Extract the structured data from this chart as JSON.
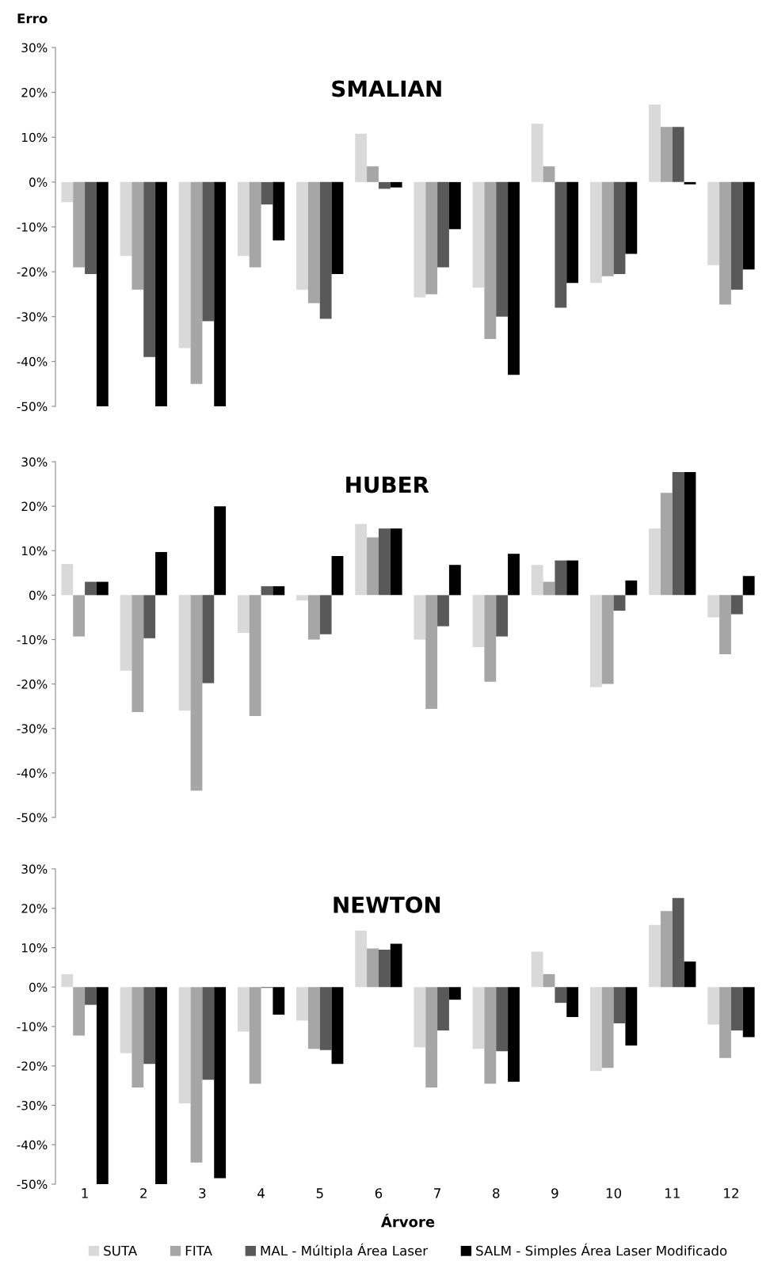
{
  "chart_data": [
    {
      "type": "bar",
      "title": "SMALIAN",
      "ylabel": "Erro",
      "categories": [
        "1",
        "2",
        "3",
        "4",
        "5",
        "6",
        "7",
        "8",
        "9",
        "10",
        "11",
        "12"
      ],
      "tick_labels": "y",
      "grid": false,
      "legend": false,
      "ylim": [
        -50,
        30
      ],
      "yticks": [
        {
          "value": 30,
          "label": "30%"
        },
        {
          "value": 20,
          "label": "20%"
        },
        {
          "value": 10,
          "label": "10%"
        },
        {
          "value": 0,
          "label": "0%"
        },
        {
          "value": -10,
          "label": "-10%"
        },
        {
          "value": -20,
          "label": "-20%"
        },
        {
          "value": -30,
          "label": "-30%"
        },
        {
          "value": -40,
          "label": "-40%"
        },
        {
          "value": -50,
          "label": "-50%"
        }
      ],
      "series": [
        {
          "color": "#d9d9d9",
          "values": [
            -4.5,
            -16.5,
            -37,
            -16.5,
            -24,
            10.8,
            -25.7,
            -23.5,
            13,
            -22.5,
            17.3,
            -18.5
          ]
        },
        {
          "color": "#a6a6a6",
          "values": [
            -19,
            -24,
            -45,
            -19,
            -27,
            3.5,
            -25,
            -35,
            3.5,
            -21,
            12.3,
            -27.3
          ]
        },
        {
          "color": "#595959",
          "values": [
            -20.5,
            -39,
            -31,
            -5,
            -30.5,
            -1.5,
            -19,
            -30,
            -28,
            -20.5,
            12.3,
            -24
          ]
        },
        {
          "color": "#000000",
          "values": [
            -50,
            -50,
            -50,
            -13,
            -20.5,
            -1.2,
            -10.5,
            -43,
            -22.5,
            -16,
            -0.5,
            -19.5
          ]
        }
      ]
    },
    {
      "type": "bar",
      "title": "HUBER",
      "categories": [
        "1",
        "2",
        "3",
        "4",
        "5",
        "6",
        "7",
        "8",
        "9",
        "10",
        "11",
        "12"
      ],
      "tick_labels": "y",
      "grid": false,
      "legend": false,
      "ylim": [
        -50,
        30
      ],
      "yticks": [
        {
          "value": 30,
          "label": "30%"
        },
        {
          "value": 20,
          "label": "20%"
        },
        {
          "value": 10,
          "label": "10%"
        },
        {
          "value": 0,
          "label": "0%"
        },
        {
          "value": -10,
          "label": "-10%"
        },
        {
          "value": -20,
          "label": "-20%"
        },
        {
          "value": -30,
          "label": "-30%"
        },
        {
          "value": -40,
          "label": "-40%"
        },
        {
          "value": -50,
          "label": "-50%"
        }
      ],
      "series": [
        {
          "color": "#d9d9d9",
          "values": [
            7,
            -17,
            -26,
            -8.5,
            -1.2,
            16,
            -10,
            -11.7,
            6.8,
            -20.7,
            15,
            -5
          ]
        },
        {
          "color": "#a6a6a6",
          "values": [
            -9.3,
            -26.3,
            -44,
            -27.2,
            -10,
            13,
            -25.6,
            -19.5,
            3,
            -20,
            23,
            -13.3
          ]
        },
        {
          "color": "#595959",
          "values": [
            3,
            -9.7,
            -19.8,
            2,
            -8.8,
            15,
            -7,
            -9.3,
            7.8,
            -3.5,
            27.7,
            -4.3
          ]
        },
        {
          "color": "#000000",
          "values": [
            3,
            9.7,
            20,
            2,
            8.8,
            15,
            6.8,
            9.3,
            7.8,
            3.3,
            27.7,
            4.3
          ]
        }
      ]
    },
    {
      "type": "bar",
      "title": "NEWTON",
      "xlabel": "Árvore",
      "categories": [
        "1",
        "2",
        "3",
        "4",
        "5",
        "6",
        "7",
        "8",
        "9",
        "10",
        "11",
        "12"
      ],
      "grid": false,
      "legend": "bottom",
      "ylim": [
        -50,
        30
      ],
      "yticks": [
        {
          "value": 30,
          "label": "30%"
        },
        {
          "value": 20,
          "label": "20%"
        },
        {
          "value": 10,
          "label": "10%"
        },
        {
          "value": 0,
          "label": "0%"
        },
        {
          "value": -10,
          "label": "-10%"
        },
        {
          "value": -20,
          "label": "-20%"
        },
        {
          "value": -30,
          "label": "-30%"
        },
        {
          "value": -40,
          "label": "-40%"
        },
        {
          "value": -50,
          "label": "-50%"
        }
      ],
      "series": [
        {
          "name": "SUTA",
          "color": "#d9d9d9",
          "values": [
            3.3,
            -16.8,
            -29.5,
            -11.3,
            -8.5,
            14.3,
            -15.3,
            -15.7,
            9,
            -21.3,
            15.8,
            -9.5
          ]
        },
        {
          "name": "FITA",
          "color": "#a6a6a6",
          "values": [
            -12.3,
            -25.5,
            -44.5,
            -24.5,
            -15.7,
            9.8,
            -25.5,
            -24.5,
            3.3,
            -20.5,
            19.3,
            -18
          ]
        },
        {
          "name": "MAL - Múltipla Área Laser",
          "color": "#595959",
          "values": [
            -4.5,
            -19.5,
            -23.5,
            -0.2,
            -16,
            9.5,
            -11,
            -16.3,
            -4,
            -9.2,
            22.6,
            -11
          ]
        },
        {
          "name": "SALM - Simples Área Laser Modificado",
          "color": "#000000",
          "values": [
            -50,
            -50,
            -48.5,
            -7,
            -19.5,
            11,
            -3.2,
            -24,
            -7.6,
            -14.8,
            6.5,
            -12.7
          ]
        }
      ]
    }
  ]
}
